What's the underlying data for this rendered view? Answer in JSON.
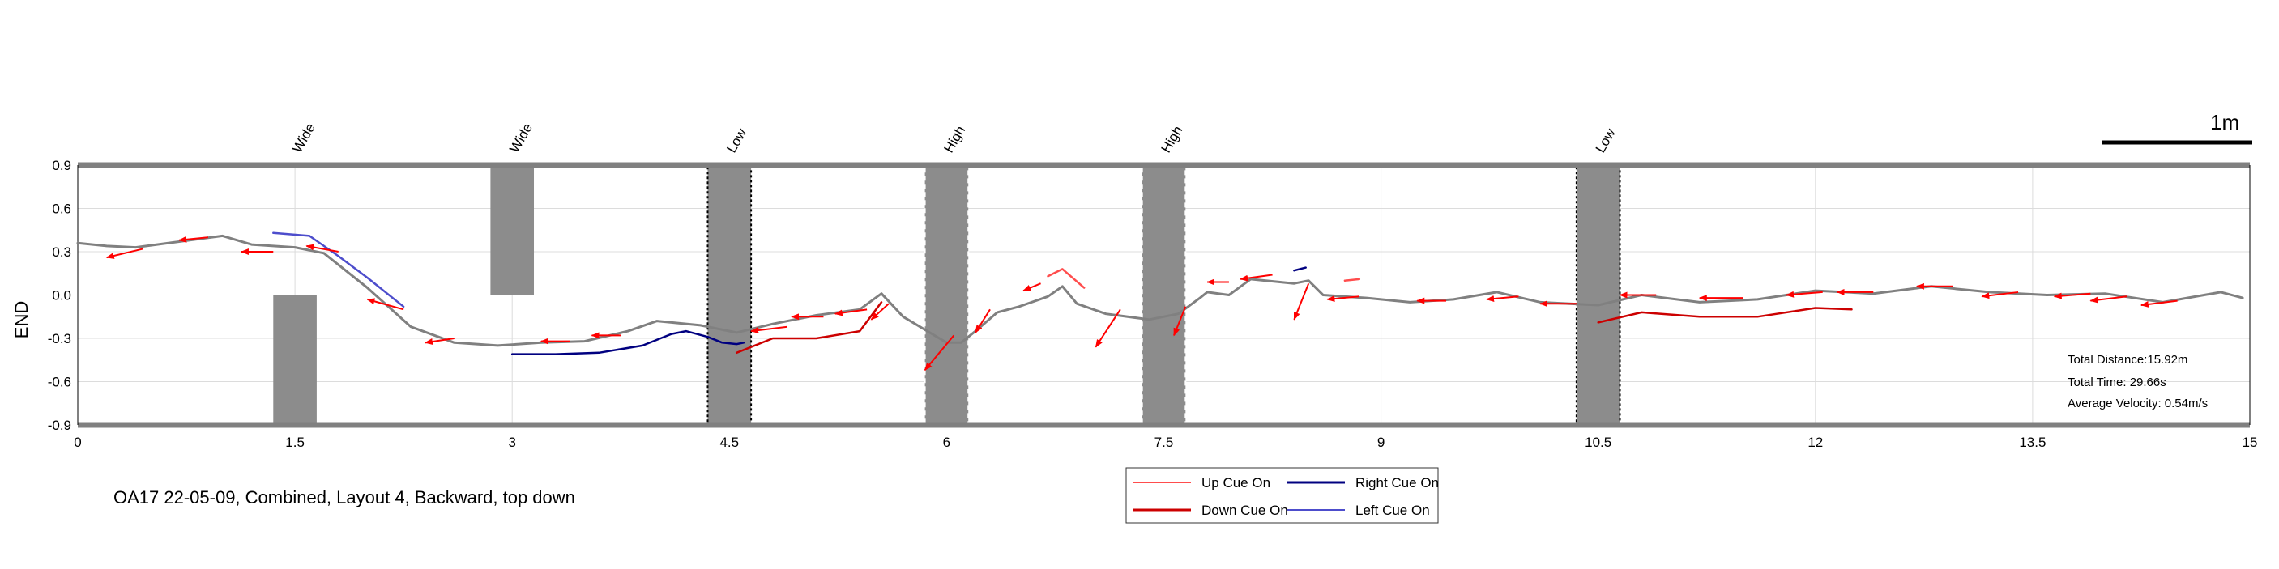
{
  "chart_data": {
    "type": "line",
    "title": "OA17 22-05-09, Combined, Layout 4, Backward, top down",
    "ylabel": "END",
    "xlabel": "",
    "xlim": [
      0,
      15
    ],
    "ylim": [
      -0.9,
      0.9
    ],
    "xticks": [
      0,
      1.5,
      3,
      4.5,
      6,
      7.5,
      9,
      10.5,
      12,
      13.5,
      15
    ],
    "yticks": [
      -0.9,
      -0.6,
      -0.3,
      0,
      0.3,
      0.6,
      0.9
    ],
    "grid": true,
    "scale_bar": "1m",
    "stats": [
      "Total Distance:15.92m",
      "Total Time: 29.66s",
      "Average Velocity: 0.54m/s"
    ],
    "obstacles": [
      {
        "label": "Wide",
        "x": 1.5,
        "y_range": [
          -0.9,
          0
        ]
      },
      {
        "label": "Wide",
        "x": 3.0,
        "y_range": [
          0,
          0.9
        ]
      },
      {
        "label": "Low",
        "x": 4.5,
        "y_range": [
          -0.9,
          0.9
        ]
      },
      {
        "label": "High",
        "x": 6.0,
        "y_range": [
          -0.9,
          0.9
        ]
      },
      {
        "label": "High",
        "x": 7.5,
        "y_range": [
          -0.9,
          0.9
        ]
      },
      {
        "label": "Low",
        "x": 10.5,
        "y_range": [
          -0.9,
          0.9
        ]
      }
    ],
    "legend": {
      "placement": "bottom-center",
      "entries": [
        {
          "name": "Up Cue On",
          "color": "#ff4d4d"
        },
        {
          "name": "Right Cue On",
          "color": "#000080"
        },
        {
          "name": "Down Cue On",
          "color": "#cc0000"
        },
        {
          "name": "Left Cue On",
          "color": "#4d4dcc"
        }
      ]
    },
    "series": [
      {
        "color": "#808080",
        "x": [
          0,
          0.2,
          0.4,
          0.7,
          1.0,
          1.2,
          1.5,
          1.7,
          2.0,
          2.3,
          2.6,
          2.9,
          3.2,
          3.5,
          3.8,
          4.0,
          4.3,
          4.55,
          4.8,
          5.1,
          5.4,
          5.55,
          5.7,
          6.0,
          6.1,
          6.2,
          6.35,
          6.5,
          6.7,
          6.8,
          6.9,
          7.1,
          7.4,
          7.6,
          7.75,
          7.8,
          7.95,
          8.1,
          8.4,
          8.5,
          8.6,
          8.9,
          9.2,
          9.5,
          9.8,
          10.1,
          10.5,
          10.8,
          11.2,
          11.6,
          12.0,
          12.4,
          12.8,
          13.2,
          13.6,
          14.0,
          14.4,
          14.8,
          14.95
        ],
        "y": [
          0.36,
          0.34,
          0.33,
          0.37,
          0.41,
          0.35,
          0.33,
          0.29,
          0.05,
          -0.22,
          -0.33,
          -0.35,
          -0.33,
          -0.32,
          -0.25,
          -0.18,
          -0.21,
          -0.26,
          -0.2,
          -0.14,
          -0.1,
          0.01,
          -0.15,
          -0.33,
          -0.33,
          -0.25,
          -0.12,
          -0.08,
          -0.01,
          0.06,
          -0.06,
          -0.13,
          -0.17,
          -0.13,
          -0.02,
          0.02,
          0.0,
          0.11,
          0.08,
          0.1,
          0.0,
          -0.02,
          -0.05,
          -0.03,
          0.02,
          -0.05,
          -0.07,
          0.0,
          -0.05,
          -0.03,
          0.03,
          0.01,
          0.06,
          0.02,
          0.0,
          0.01,
          -0.05,
          0.02,
          -0.02
        ]
      },
      {
        "color": "#cc0000",
        "x": [
          4.55,
          4.8,
          5.1,
          5.4,
          5.55
        ],
        "y": [
          -0.4,
          -0.3,
          -0.3,
          -0.25,
          -0.05
        ]
      },
      {
        "color": "#cc0000",
        "x": [
          10.5,
          10.8,
          11.2,
          11.6,
          12.0,
          12.25
        ],
        "y": [
          -0.19,
          -0.12,
          -0.15,
          -0.15,
          -0.09,
          -0.1
        ]
      },
      {
        "color": "#000080",
        "x": [
          3.0,
          3.1,
          3.3,
          3.6,
          3.9,
          4.1,
          4.2,
          4.35,
          4.45,
          4.55,
          4.6
        ],
        "y": [
          -0.41,
          -0.41,
          -0.41,
          -0.4,
          -0.35,
          -0.27,
          -0.25,
          -0.29,
          -0.33,
          -0.34,
          -0.33
        ]
      },
      {
        "color": "#4d4dcc",
        "x": [
          1.35,
          1.6,
          1.8,
          2.0,
          2.25
        ],
        "y": [
          0.43,
          0.41,
          0.27,
          0.12,
          -0.08
        ]
      },
      {
        "color": "#ff4d4d",
        "x": [
          6.7,
          6.8,
          6.95
        ],
        "y": [
          0.13,
          0.18,
          0.05
        ]
      },
      {
        "color": "#000080",
        "x": [
          8.4,
          8.48
        ],
        "y": [
          0.17,
          0.19
        ]
      },
      {
        "color": "#ff4d4d",
        "x": [
          8.75,
          8.85
        ],
        "y": [
          0.1,
          0.11
        ]
      }
    ],
    "arrows": [
      {
        "x": 0.45,
        "y": 0.32,
        "dx": -0.25,
        "dy": -0.06
      },
      {
        "x": 0.9,
        "y": 0.4,
        "dx": -0.2,
        "dy": -0.02
      },
      {
        "x": 1.35,
        "y": 0.3,
        "dx": -0.22,
        "dy": 0.0
      },
      {
        "x": 1.8,
        "y": 0.3,
        "dx": -0.22,
        "dy": 0.04
      },
      {
        "x": 2.25,
        "y": -0.1,
        "dx": -0.25,
        "dy": 0.07
      },
      {
        "x": 2.6,
        "y": -0.3,
        "dx": -0.2,
        "dy": -0.03
      },
      {
        "x": 3.4,
        "y": -0.32,
        "dx": -0.2,
        "dy": 0.0
      },
      {
        "x": 3.75,
        "y": -0.28,
        "dx": -0.2,
        "dy": 0.0
      },
      {
        "x": 4.9,
        "y": -0.22,
        "dx": -0.25,
        "dy": -0.03
      },
      {
        "x": 5.15,
        "y": -0.15,
        "dx": -0.22,
        "dy": 0.0
      },
      {
        "x": 5.45,
        "y": -0.1,
        "dx": -0.22,
        "dy": -0.03
      },
      {
        "x": 5.6,
        "y": -0.06,
        "dx": -0.12,
        "dy": -0.11
      },
      {
        "x": 6.05,
        "y": -0.28,
        "dx": -0.2,
        "dy": -0.24
      },
      {
        "x": 6.3,
        "y": -0.1,
        "dx": -0.1,
        "dy": -0.16
      },
      {
        "x": 6.65,
        "y": 0.08,
        "dx": -0.12,
        "dy": -0.05
      },
      {
        "x": 7.2,
        "y": -0.1,
        "dx": -0.17,
        "dy": -0.26
      },
      {
        "x": 7.65,
        "y": -0.08,
        "dx": -0.08,
        "dy": -0.2
      },
      {
        "x": 7.95,
        "y": 0.09,
        "dx": -0.15,
        "dy": 0.0
      },
      {
        "x": 8.25,
        "y": 0.14,
        "dx": -0.22,
        "dy": -0.03
      },
      {
        "x": 8.5,
        "y": 0.08,
        "dx": -0.1,
        "dy": -0.25
      },
      {
        "x": 8.85,
        "y": -0.01,
        "dx": -0.22,
        "dy": -0.02
      },
      {
        "x": 9.45,
        "y": -0.04,
        "dx": -0.2,
        "dy": 0.0
      },
      {
        "x": 9.95,
        "y": -0.01,
        "dx": -0.22,
        "dy": -0.02
      },
      {
        "x": 10.35,
        "y": -0.06,
        "dx": -0.25,
        "dy": 0.0
      },
      {
        "x": 10.9,
        "y": 0.0,
        "dx": -0.25,
        "dy": 0.0
      },
      {
        "x": 11.5,
        "y": -0.02,
        "dx": -0.3,
        "dy": 0.0
      },
      {
        "x": 12.05,
        "y": 0.02,
        "dx": -0.25,
        "dy": -0.02
      },
      {
        "x": 12.4,
        "y": 0.02,
        "dx": -0.25,
        "dy": 0.0
      },
      {
        "x": 12.95,
        "y": 0.06,
        "dx": -0.25,
        "dy": 0.0
      },
      {
        "x": 13.4,
        "y": 0.02,
        "dx": -0.25,
        "dy": -0.03
      },
      {
        "x": 13.9,
        "y": 0.01,
        "dx": -0.25,
        "dy": -0.02
      },
      {
        "x": 14.15,
        "y": -0.01,
        "dx": -0.25,
        "dy": -0.03
      },
      {
        "x": 14.5,
        "y": -0.04,
        "dx": -0.25,
        "dy": -0.03
      }
    ]
  }
}
